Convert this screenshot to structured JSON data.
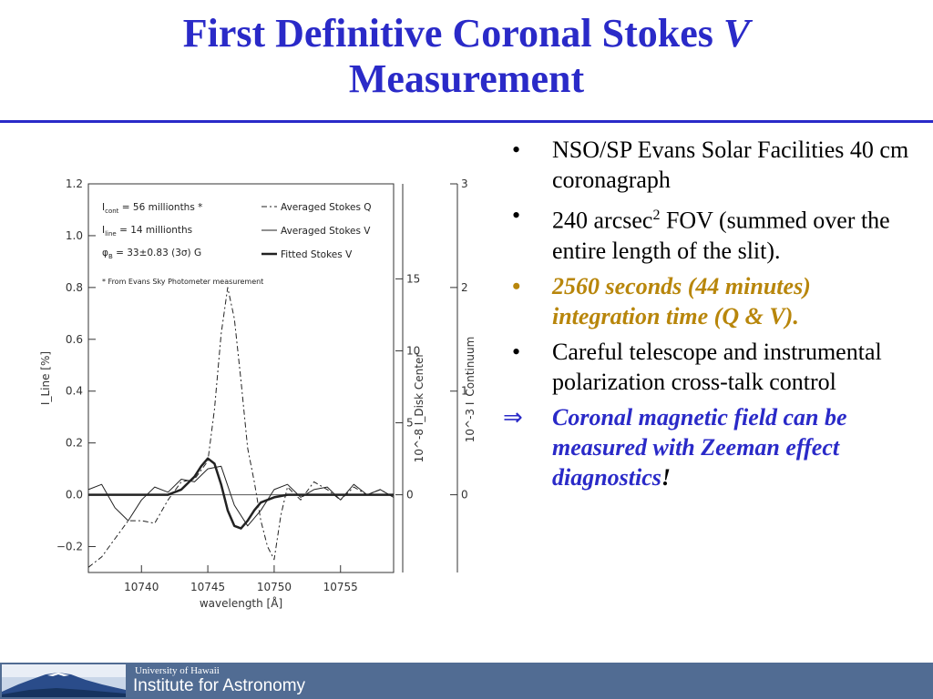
{
  "slide": {
    "title_line1": "First Definitive Coronal Stokes ",
    "title_v": "V",
    "title_line2": "Measurement"
  },
  "bullets": [
    {
      "marker": "•",
      "text": "NSO/SP Evans Solar Facilities 40 cm coronagraph"
    },
    {
      "marker": "•",
      "text_before": "240 arcsec",
      "superscript": "2",
      "text_after": " FOV (summed over the entire length of the slit)."
    },
    {
      "marker": "•",
      "text": "2560 seconds (44 minutes) integration time (Q & V)."
    },
    {
      "marker": "•",
      "text": "Careful telescope and instrumental polarization cross-talk control"
    },
    {
      "marker": "⇒",
      "text": "Coronal magnetic field can be measured with Zeeman effect diagnostics",
      "suffix": "!"
    }
  ],
  "footer": {
    "university": "University of Hawaii",
    "institute": "Institute for Astronomy"
  },
  "colors": {
    "title": "#2a2ac8",
    "emphasis": "#b8860b",
    "conclusion": "#2a2ac8",
    "footer_bg": "#516c93"
  },
  "chart_data": {
    "type": "line",
    "xlabel": "wavelength [Å]",
    "ylabel_left": "I_Line [%]",
    "ylabel_right1": "10^-8 I_Disk Center",
    "ylabel_right2": "10^-3 I_Continuum",
    "xlim": [
      10736,
      10759
    ],
    "ylim": [
      -0.3,
      1.2
    ],
    "xticks": [
      "10740",
      "10745",
      "10750",
      "10755"
    ],
    "yticks": [
      "1.2",
      "1.0",
      "0.8",
      "0.6",
      "0.4",
      "0.2",
      "0.0",
      "−0.2"
    ],
    "right_ticks1": [
      "15",
      "10",
      "5",
      "0"
    ],
    "right_ticks2": [
      "3",
      "2",
      "1",
      "0"
    ],
    "legend_info": [
      {
        "label": "I",
        "sub": "cont",
        "value": "= 56 millionths",
        "star": "*"
      },
      {
        "label": "I",
        "sub": "line",
        "value": "= 14 millionths"
      },
      {
        "label": "φ",
        "sub": "B",
        "value": "= 33±0.83 (3σ) G"
      }
    ],
    "footnote": "* From Evans Sky Photometer measurement",
    "legend": [
      "Averaged Stokes Q",
      "Averaged Stokes V",
      "Fitted Stokes V"
    ],
    "series": [
      {
        "name": "Averaged Stokes Q",
        "x": [
          10736,
          10737,
          10738,
          10739,
          10740,
          10741,
          10742,
          10743,
          10744,
          10745,
          10745.5,
          10746,
          10746.5,
          10747,
          10747.5,
          10748,
          10748.5,
          10749,
          10749.5,
          10750,
          10750.5,
          10751,
          10752,
          10753,
          10754,
          10755,
          10756,
          10757,
          10758,
          10759
        ],
        "y": [
          -0.28,
          -0.24,
          -0.17,
          -0.1,
          -0.1,
          -0.11,
          -0.02,
          0.05,
          0.06,
          0.13,
          0.33,
          0.62,
          0.8,
          0.68,
          0.44,
          0.18,
          0.05,
          -0.1,
          -0.2,
          -0.25,
          -0.08,
          0.03,
          -0.02,
          0.05,
          0.02,
          -0.02,
          0.03,
          0.0,
          0.02,
          -0.01
        ]
      },
      {
        "name": "Averaged Stokes V",
        "x": [
          10736,
          10737,
          10738,
          10739,
          10740,
          10741,
          10742,
          10743,
          10744,
          10745,
          10746,
          10747,
          10748,
          10749,
          10750,
          10751,
          10752,
          10753,
          10754,
          10755,
          10756,
          10757,
          10758,
          10759
        ],
        "y": [
          0.02,
          0.04,
          -0.05,
          -0.1,
          -0.02,
          0.03,
          0.01,
          0.06,
          0.05,
          0.1,
          0.11,
          -0.04,
          -0.12,
          -0.06,
          0.02,
          0.04,
          -0.01,
          0.02,
          0.03,
          -0.02,
          0.04,
          0.0,
          0.02,
          -0.01
        ]
      },
      {
        "name": "Fitted Stokes V",
        "x": [
          10736,
          10742,
          10743,
          10744,
          10744.5,
          10745,
          10745.5,
          10746,
          10746.5,
          10747,
          10747.5,
          10748,
          10748.5,
          10749,
          10750,
          10751,
          10759
        ],
        "y": [
          0.0,
          0.0,
          0.02,
          0.07,
          0.11,
          0.14,
          0.12,
          0.04,
          -0.06,
          -0.12,
          -0.13,
          -0.1,
          -0.06,
          -0.03,
          -0.01,
          0.0,
          0.0
        ]
      }
    ]
  }
}
